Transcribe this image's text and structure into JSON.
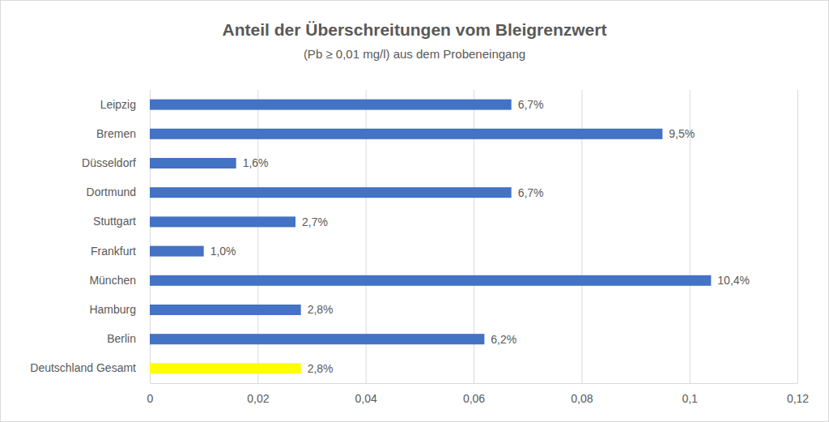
{
  "chart_data": {
    "type": "bar",
    "orientation": "horizontal",
    "title": "Anteil der Überschreitungen vom Bleigrenzwert",
    "subtitle": "(Pb ≥ 0,01 mg/l) aus dem Probeneingang",
    "categories": [
      "Leipzig",
      "Bremen",
      "Düsseldorf",
      "Dortmund",
      "Stuttgart",
      "Frankfurt",
      "München",
      "Hamburg",
      "Berlin",
      "Deutschland Gesamt"
    ],
    "values": [
      0.067,
      0.095,
      0.016,
      0.067,
      0.027,
      0.01,
      0.104,
      0.028,
      0.062,
      0.028
    ],
    "value_labels": [
      "6,7%",
      "9,5%",
      "1,6%",
      "6,7%",
      "2,7%",
      "1,0%",
      "10,4%",
      "2,8%",
      "6,2%",
      "2,8%"
    ],
    "colors": [
      "#4472c4",
      "#4472c4",
      "#4472c4",
      "#4472c4",
      "#4472c4",
      "#4472c4",
      "#4472c4",
      "#4472c4",
      "#4472c4",
      "#ffff00"
    ],
    "xlim": [
      0,
      0.12
    ],
    "xticks": [
      0,
      {
        "value": 0.02,
        "label": "0,02"
      },
      {
        "value": 0.04,
        "label": "0,04"
      },
      {
        "value": 0.06,
        "label": "0,06"
      },
      {
        "value": 0.08,
        "label": "0,08"
      },
      {
        "value": 0.1,
        "label": "0,1"
      },
      {
        "value": 0.12,
        "label": "0,12"
      }
    ],
    "grid": true,
    "data_labels": true
  }
}
